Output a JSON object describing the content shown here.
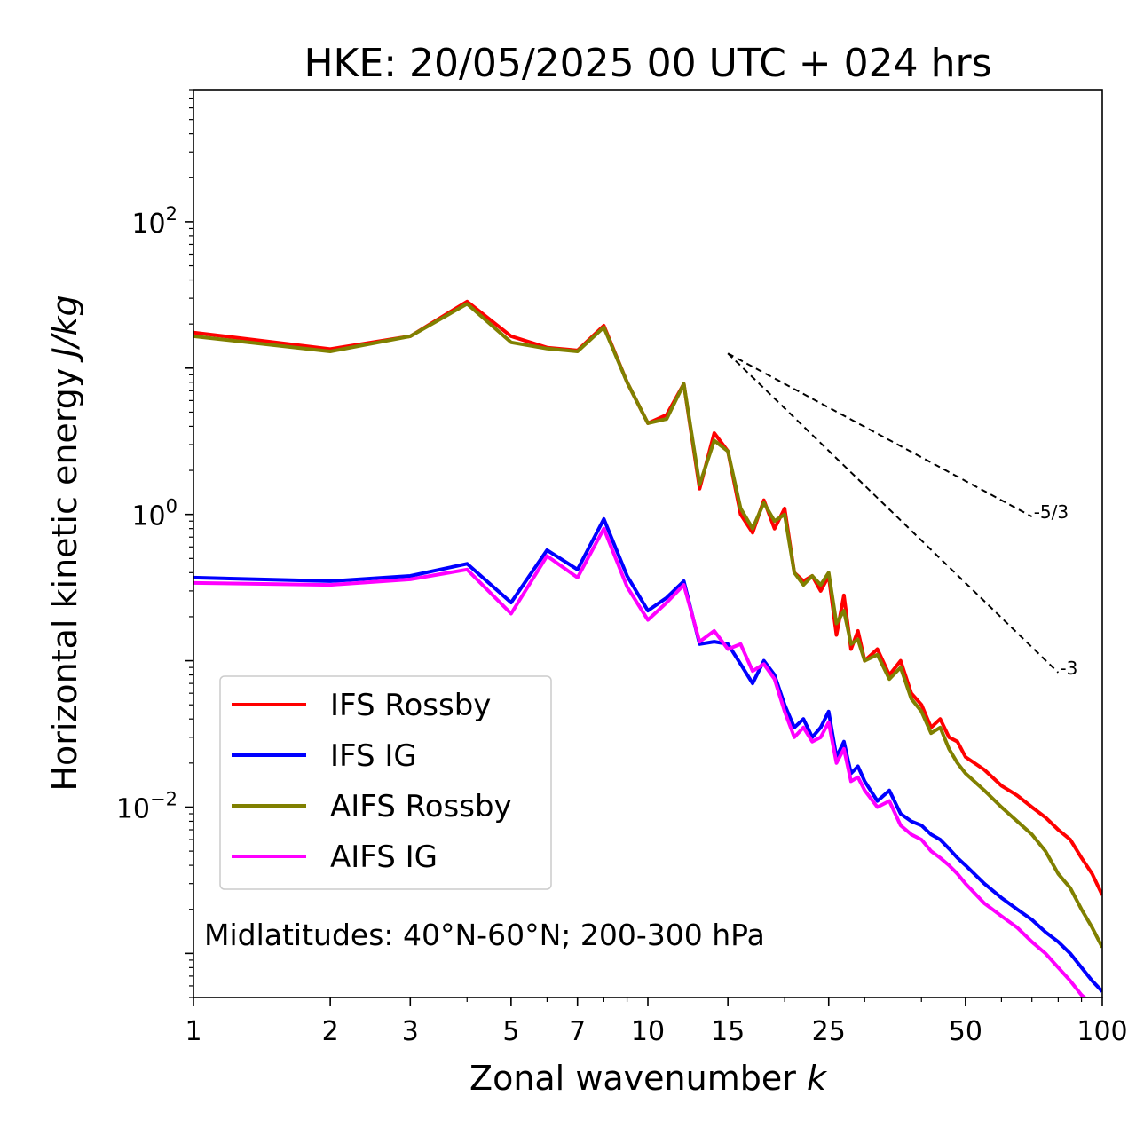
{
  "chart_data": {
    "type": "line",
    "title": "HKE: 20/05/2025 00 UTC + 024 hrs",
    "xlabel": "Zonal wavenumber",
    "xlabel_var": "k",
    "ylabel": "Horizontal kinetic energy",
    "ylabel_units": "J/kg",
    "x_scale": "log",
    "y_scale": "log",
    "xlim": [
      1,
      100
    ],
    "ylim": [
      0.0005,
      800
    ],
    "x_ticks": [
      {
        "value": 1,
        "label": "1"
      },
      {
        "value": 2,
        "label": "2"
      },
      {
        "value": 3,
        "label": "3"
      },
      {
        "value": 5,
        "label": "5"
      },
      {
        "value": 7,
        "label": "7"
      },
      {
        "value": 10,
        "label": "10"
      },
      {
        "value": 15,
        "label": "15"
      },
      {
        "value": 25,
        "label": "25"
      },
      {
        "value": 50,
        "label": "50"
      },
      {
        "value": 100,
        "label": "100"
      }
    ],
    "y_ticks": [
      {
        "value": 100,
        "base": "10",
        "exp": "2"
      },
      {
        "value": 1,
        "base": "10",
        "exp": "0"
      },
      {
        "value": 0.01,
        "base": "10",
        "exp": "−2"
      }
    ],
    "grid": false,
    "legend_position": "lower-left",
    "annotation": "Midlatitudes: 40°N-60°N; 200-300 hPa",
    "reference_slopes": [
      {
        "label": "-5/3",
        "slope": -1.6667,
        "x": [
          15,
          70
        ],
        "y_start": 12.6,
        "color": "#000000"
      },
      {
        "label": "-3",
        "slope": -3,
        "x": [
          15,
          80
        ],
        "y_start": 12.6,
        "color": "#000000"
      }
    ],
    "series": [
      {
        "name": "IFS Rossby",
        "color": "#ff0000",
        "x": [
          1,
          2,
          3,
          4,
          5,
          6,
          7,
          8,
          9,
          10,
          11,
          12,
          13,
          14,
          15,
          16,
          17,
          18,
          19,
          20,
          21,
          22,
          23,
          24,
          25,
          26,
          27,
          28,
          29,
          30,
          32,
          34,
          36,
          38,
          40,
          42,
          44,
          46,
          48,
          50,
          55,
          60,
          65,
          70,
          75,
          80,
          85,
          90,
          95,
          100
        ],
        "values": [
          17.5,
          13.5,
          16.5,
          28.5,
          16.5,
          13.8,
          13.2,
          19.5,
          8,
          4.2,
          4.8,
          7.8,
          1.5,
          3.6,
          2.7,
          1,
          0.75,
          1.25,
          0.8,
          1.1,
          0.4,
          0.35,
          0.38,
          0.3,
          0.38,
          0.15,
          0.28,
          0.12,
          0.16,
          0.1,
          0.12,
          0.08,
          0.1,
          0.06,
          0.05,
          0.035,
          0.04,
          0.03,
          0.028,
          0.022,
          0.018,
          0.014,
          0.012,
          0.01,
          0.0085,
          0.007,
          0.006,
          0.0045,
          0.0035,
          0.0025
        ]
      },
      {
        "name": "IFS IG",
        "color": "#0000ff",
        "x": [
          1,
          2,
          3,
          4,
          5,
          6,
          7,
          8,
          9,
          10,
          11,
          12,
          13,
          14,
          15,
          16,
          17,
          18,
          19,
          20,
          21,
          22,
          23,
          24,
          25,
          26,
          27,
          28,
          29,
          30,
          32,
          34,
          36,
          38,
          40,
          42,
          44,
          46,
          48,
          50,
          55,
          60,
          65,
          70,
          75,
          80,
          85,
          90,
          95,
          100
        ],
        "values": [
          0.37,
          0.35,
          0.38,
          0.46,
          0.25,
          0.57,
          0.42,
          0.93,
          0.38,
          0.22,
          0.27,
          0.35,
          0.13,
          0.135,
          0.13,
          0.095,
          0.07,
          0.1,
          0.08,
          0.05,
          0.035,
          0.04,
          0.03,
          0.035,
          0.045,
          0.022,
          0.028,
          0.017,
          0.019,
          0.015,
          0.011,
          0.013,
          0.009,
          0.008,
          0.0075,
          0.0065,
          0.006,
          0.0052,
          0.0045,
          0.004,
          0.003,
          0.0024,
          0.002,
          0.0017,
          0.0014,
          0.0012,
          0.001,
          0.0008,
          0.00065,
          0.00055
        ]
      },
      {
        "name": "AIFS Rossby",
        "color": "#808000",
        "x": [
          1,
          2,
          3,
          4,
          5,
          6,
          7,
          8,
          9,
          10,
          11,
          12,
          13,
          14,
          15,
          16,
          17,
          18,
          19,
          20,
          21,
          22,
          23,
          24,
          25,
          26,
          27,
          28,
          29,
          30,
          32,
          34,
          36,
          38,
          40,
          42,
          44,
          46,
          48,
          50,
          55,
          60,
          65,
          70,
          75,
          80,
          85,
          90,
          95,
          100
        ],
        "values": [
          16.5,
          13,
          16.5,
          27.5,
          15,
          13.6,
          13,
          19,
          8,
          4.2,
          4.5,
          7.8,
          1.6,
          3.2,
          2.7,
          1.1,
          0.8,
          1.2,
          0.9,
          1,
          0.4,
          0.33,
          0.38,
          0.33,
          0.4,
          0.18,
          0.22,
          0.13,
          0.14,
          0.1,
          0.11,
          0.075,
          0.09,
          0.055,
          0.045,
          0.032,
          0.035,
          0.025,
          0.02,
          0.017,
          0.013,
          0.01,
          0.008,
          0.0065,
          0.005,
          0.0035,
          0.0028,
          0.002,
          0.0015,
          0.0011
        ]
      },
      {
        "name": "AIFS IG",
        "color": "#ff00ff",
        "x": [
          1,
          2,
          3,
          4,
          5,
          6,
          7,
          8,
          9,
          10,
          11,
          12,
          13,
          14,
          15,
          16,
          17,
          18,
          19,
          20,
          21,
          22,
          23,
          24,
          25,
          26,
          27,
          28,
          29,
          30,
          32,
          34,
          36,
          38,
          40,
          42,
          44,
          46,
          48,
          50,
          55,
          60,
          65,
          70,
          75,
          80,
          85,
          90,
          95,
          100
        ],
        "values": [
          0.34,
          0.33,
          0.36,
          0.42,
          0.21,
          0.52,
          0.37,
          0.8,
          0.32,
          0.19,
          0.25,
          0.33,
          0.135,
          0.16,
          0.12,
          0.13,
          0.085,
          0.095,
          0.075,
          0.045,
          0.03,
          0.035,
          0.028,
          0.03,
          0.038,
          0.02,
          0.025,
          0.015,
          0.016,
          0.013,
          0.01,
          0.011,
          0.0075,
          0.0065,
          0.006,
          0.005,
          0.0045,
          0.004,
          0.0035,
          0.003,
          0.0022,
          0.0018,
          0.0015,
          0.0012,
          0.001,
          0.0008,
          0.00065,
          0.00052,
          0.00045,
          0.0004
        ]
      }
    ]
  }
}
